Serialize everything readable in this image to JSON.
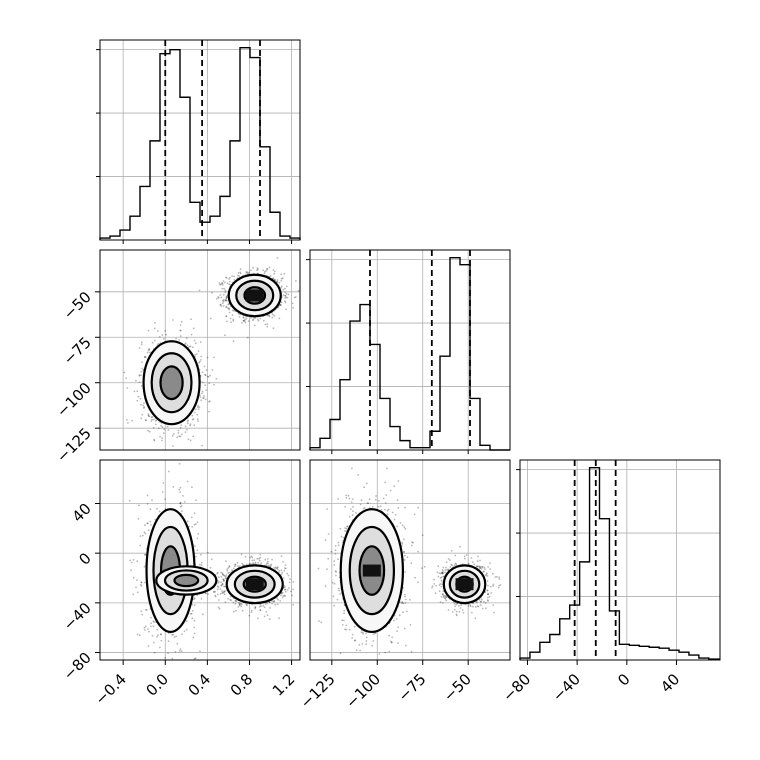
{
  "chart_data": {
    "type": "corner",
    "parameters": [
      {
        "key": "p0",
        "range": [
          -0.62,
          1.28
        ],
        "ticks": [
          -0.4,
          0.0,
          0.4,
          0.8,
          1.2
        ],
        "tick_labels": [
          "−0.4",
          "0.0",
          "0.4",
          "0.8",
          "1.2"
        ],
        "quantiles": [
          0.0,
          0.35,
          0.9
        ],
        "histogram": {
          "bin_edges": [
            -0.62,
            -0.525,
            -0.43,
            -0.335,
            -0.24,
            -0.145,
            -0.05,
            0.045,
            0.14,
            0.235,
            0.33,
            0.425,
            0.52,
            0.615,
            0.71,
            0.805,
            0.9,
            0.995,
            1.09,
            1.185,
            1.28
          ],
          "values": [
            0.01,
            0.02,
            0.05,
            0.12,
            0.27,
            0.5,
            0.94,
            0.96,
            0.72,
            0.19,
            0.09,
            0.12,
            0.22,
            0.5,
            0.97,
            0.92,
            0.47,
            0.14,
            0.02,
            0.01
          ]
        }
      },
      {
        "key": "p1",
        "range": [
          -137,
          -27
        ],
        "ticks": [
          -125,
          -100,
          -75,
          -50
        ],
        "tick_labels": [
          "−125",
          "−100",
          "−75",
          "−50"
        ],
        "quantiles": [
          -104,
          -70,
          -49
        ],
        "histogram": {
          "bin_edges": [
            -137,
            -131.5,
            -126,
            -120.5,
            -115,
            -109.5,
            -104,
            -98.5,
            -93,
            -87.5,
            -82,
            -76.5,
            -71,
            -65.5,
            -60,
            -54.5,
            -49,
            -43.5,
            -38,
            -32.5,
            -27
          ],
          "values": [
            0.01,
            0.05,
            0.13,
            0.3,
            0.55,
            0.62,
            0.45,
            0.22,
            0.1,
            0.04,
            0.01,
            0.01,
            0.08,
            0.4,
            0.82,
            0.79,
            0.22,
            0.02,
            0.0,
            0.0
          ]
        }
      },
      {
        "key": "p2",
        "range": [
          -86,
          75
        ],
        "ticks": [
          -80,
          -40,
          0,
          40
        ],
        "tick_labels": [
          "−80",
          "−40",
          "0",
          "40"
        ],
        "quantiles": [
          -42,
          -25,
          -9
        ],
        "histogram": {
          "bin_edges": [
            -86,
            -78,
            -70,
            -62,
            -54,
            -46,
            -38,
            -30,
            -22,
            -14,
            -6,
            2,
            10,
            18,
            26,
            34,
            42,
            50,
            58,
            66,
            74
          ],
          "values": [
            0.01,
            0.04,
            0.09,
            0.13,
            0.21,
            0.28,
            0.5,
            0.98,
            0.72,
            0.25,
            0.08,
            0.075,
            0.07,
            0.065,
            0.06,
            0.05,
            0.04,
            0.025,
            0.01,
            0.005
          ]
        }
      }
    ],
    "pair_panels": [
      {
        "x": "p0",
        "y": "p1",
        "modes": [
          {
            "center": [
              0.85,
              -52
            ],
            "spread": [
              0.13,
              6.0
            ],
            "weight": 0.55
          },
          {
            "center": [
              0.06,
              -100
            ],
            "spread": [
              0.14,
              12.0
            ],
            "weight": 0.45
          }
        ]
      },
      {
        "x": "p0",
        "y": "p2",
        "modes": [
          {
            "center": [
              0.85,
              -25
            ],
            "spread": [
              0.14,
              8.0
            ],
            "weight": 0.5
          },
          {
            "center": [
              0.05,
              -14
            ],
            "spread": [
              0.12,
              26.0
            ],
            "weight": 0.4
          },
          {
            "center": [
              0.2,
              -22
            ],
            "spread": [
              0.15,
              6.0
            ],
            "weight": 0.1
          }
        ]
      },
      {
        "x": "p1",
        "y": "p2",
        "modes": [
          {
            "center": [
              -52,
              -25
            ],
            "spread": [
              6.0,
              8.0
            ],
            "weight": 0.5
          },
          {
            "center": [
              -103,
              -14
            ],
            "spread": [
              9.0,
              26.0
            ],
            "weight": 0.5
          }
        ]
      }
    ],
    "grid": true,
    "legend": "none"
  }
}
